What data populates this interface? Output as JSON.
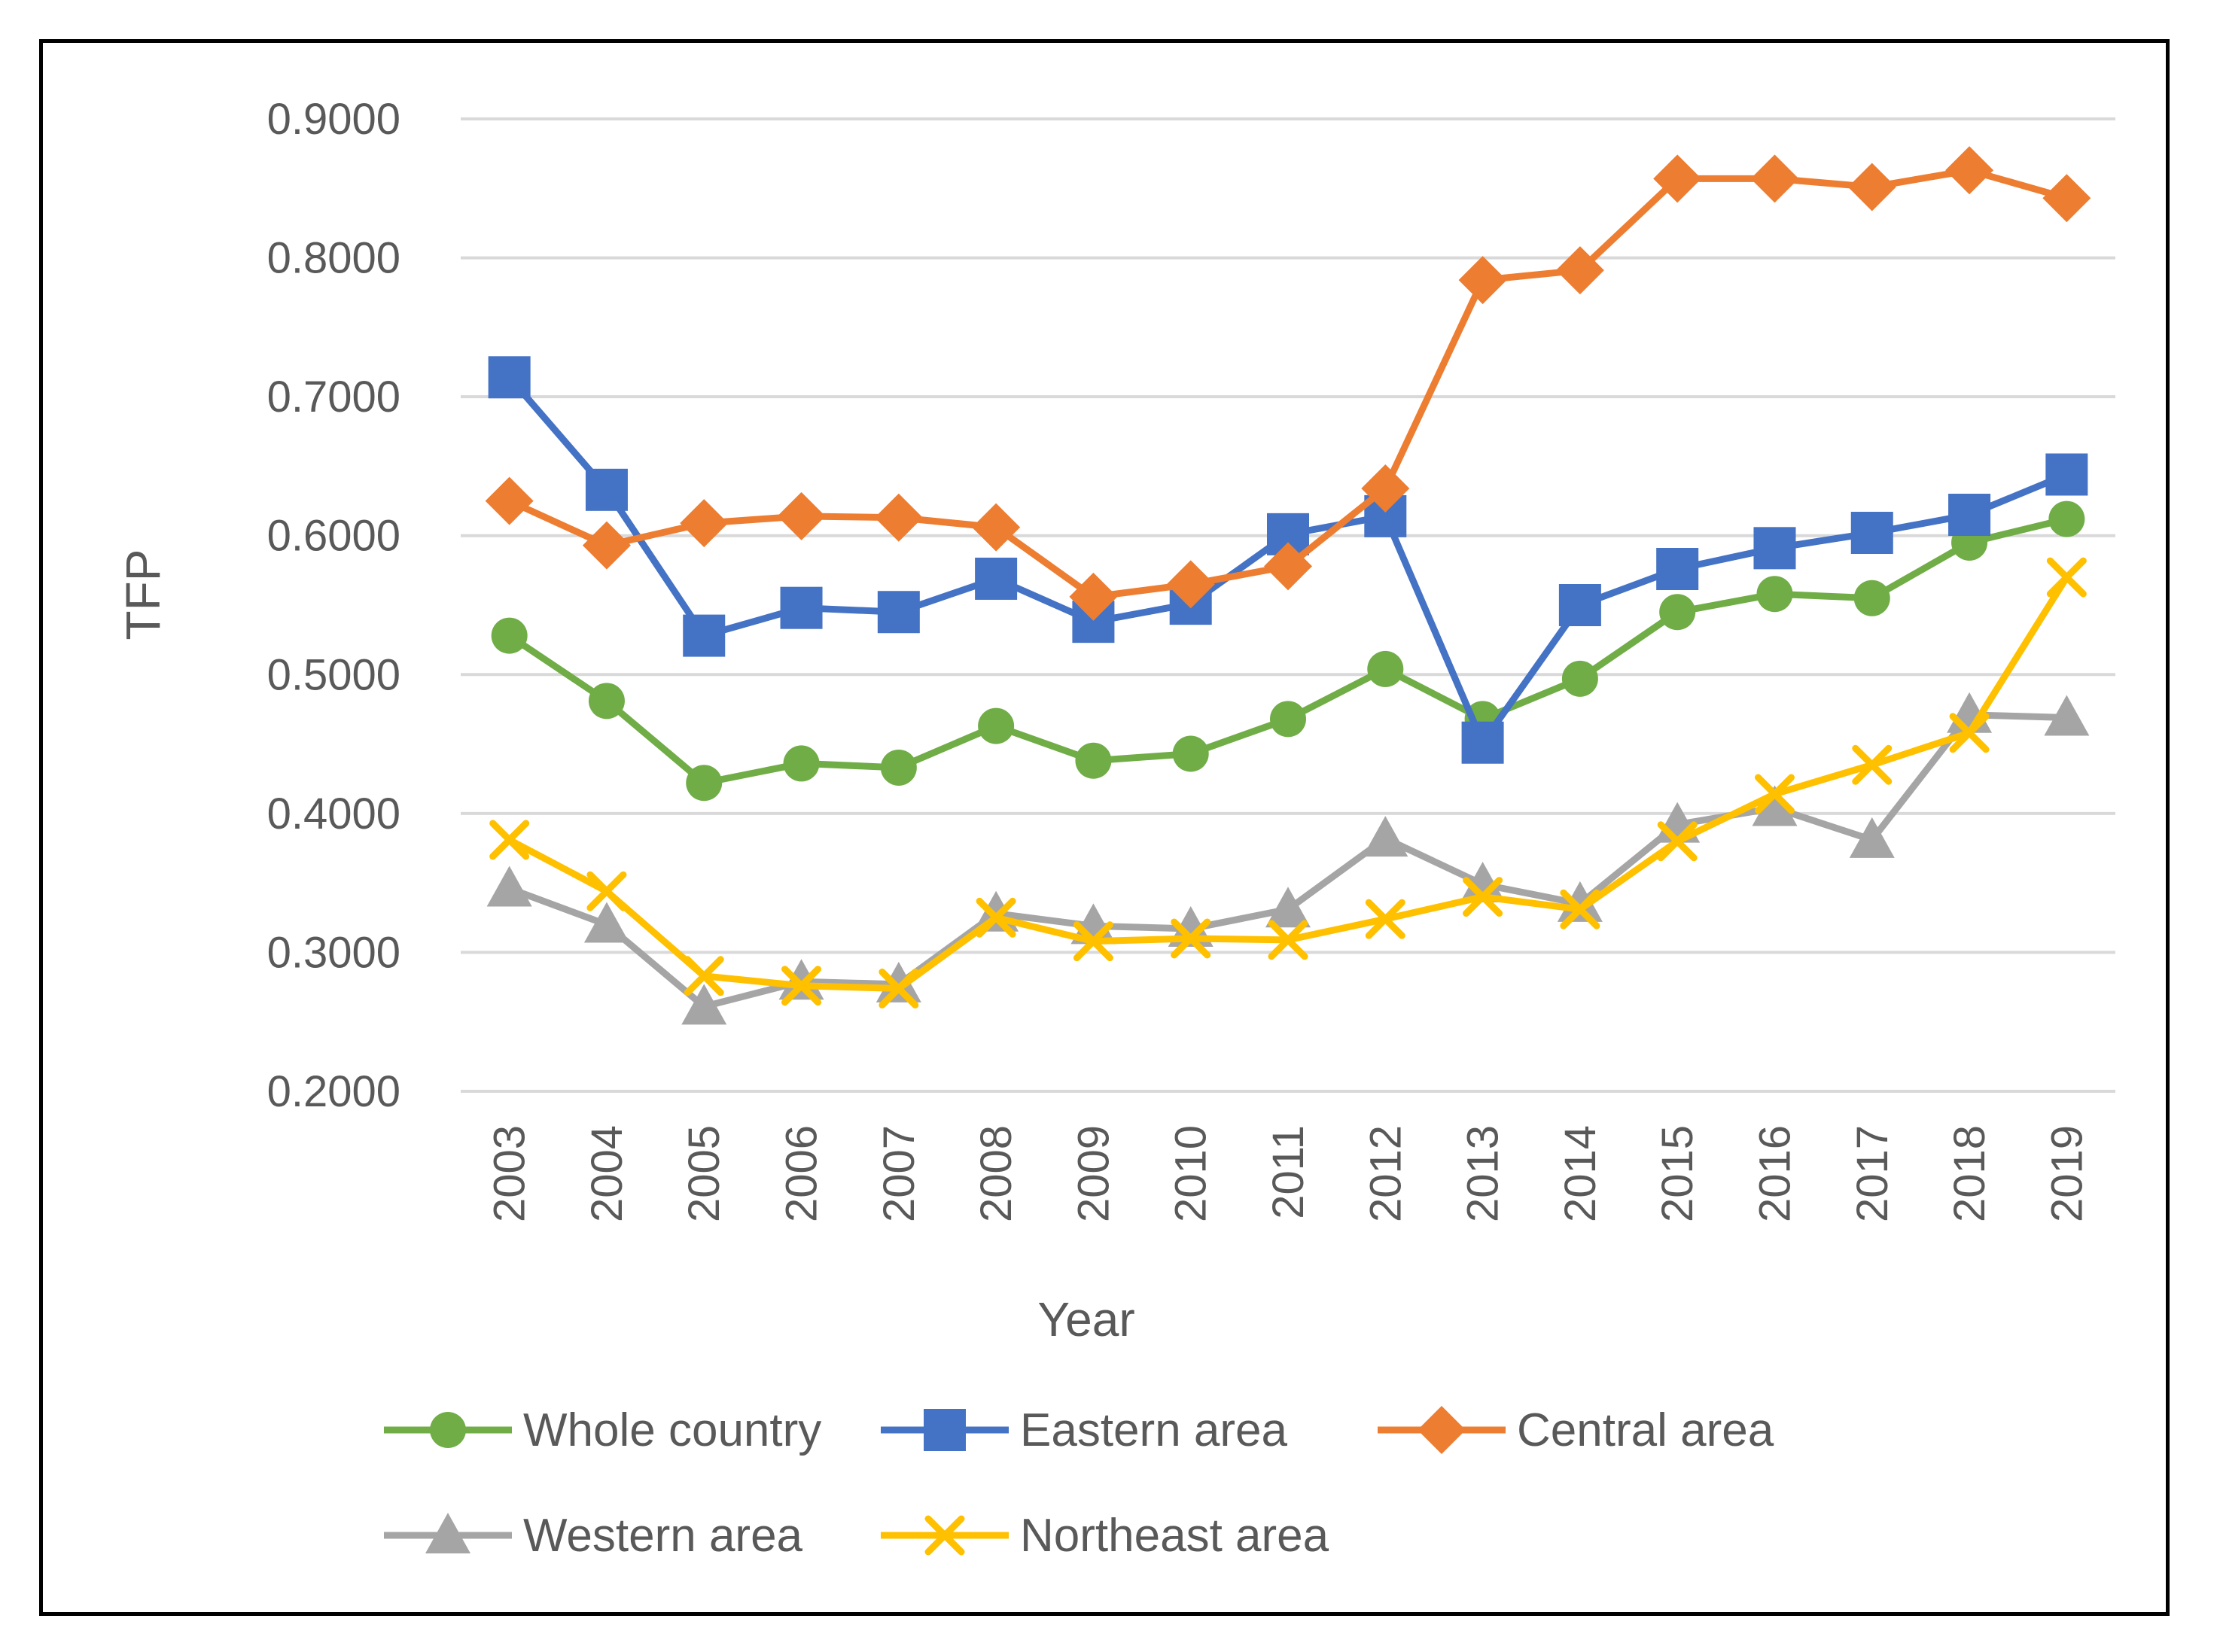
{
  "chart_data": {
    "type": "line",
    "title": "",
    "xlabel": "Year",
    "ylabel": "TFP",
    "ylim": [
      0.2,
      0.9
    ],
    "yticks": [
      "0.2000",
      "0.3000",
      "0.4000",
      "0.5000",
      "0.6000",
      "0.7000",
      "0.8000",
      "0.9000"
    ],
    "ytick_values": [
      0.2,
      0.3,
      0.4,
      0.5,
      0.6,
      0.7,
      0.8,
      0.9
    ],
    "categories": [
      "2003",
      "2004",
      "2005",
      "2006",
      "2007",
      "2008",
      "2009",
      "2010",
      "2011",
      "2012",
      "2013",
      "2014",
      "2015",
      "2016",
      "2017",
      "2018",
      "2019"
    ],
    "grid": true,
    "legend_position": "bottom",
    "series": [
      {
        "name": "Whole country",
        "color": "#70AD47",
        "marker": "circle",
        "values": [
          0.528,
          0.481,
          0.422,
          0.436,
          0.433,
          0.463,
          0.438,
          0.443,
          0.468,
          0.504,
          0.468,
          0.497,
          0.545,
          0.558,
          0.555,
          0.595,
          0.612
        ]
      },
      {
        "name": "Eastern area",
        "color": "#4472C4",
        "marker": "square",
        "values": [
          0.714,
          0.633,
          0.528,
          0.548,
          0.545,
          0.569,
          0.538,
          0.551,
          0.601,
          0.614,
          0.451,
          0.55,
          0.576,
          0.591,
          0.602,
          0.615,
          0.644
        ]
      },
      {
        "name": "Central area",
        "color": "#ED7D31",
        "marker": "diamond",
        "values": [
          0.625,
          0.593,
          0.609,
          0.614,
          0.613,
          0.606,
          0.556,
          0.565,
          0.578,
          0.634,
          0.784,
          0.791,
          0.857,
          0.857,
          0.851,
          0.863,
          0.843
        ]
      },
      {
        "name": "Western area",
        "color": "#A5A5A5",
        "marker": "triangle",
        "values": [
          0.346,
          0.32,
          0.261,
          0.279,
          0.277,
          0.328,
          0.319,
          0.317,
          0.331,
          0.382,
          0.349,
          0.335,
          0.392,
          0.404,
          0.381,
          0.471,
          0.469
        ]
      },
      {
        "name": "Northeast area",
        "color": "#FFC000",
        "marker": "x",
        "values": [
          0.381,
          0.344,
          0.283,
          0.276,
          0.274,
          0.325,
          0.308,
          0.31,
          0.309,
          0.324,
          0.34,
          0.331,
          0.38,
          0.414,
          0.435,
          0.458,
          0.57
        ]
      }
    ]
  }
}
